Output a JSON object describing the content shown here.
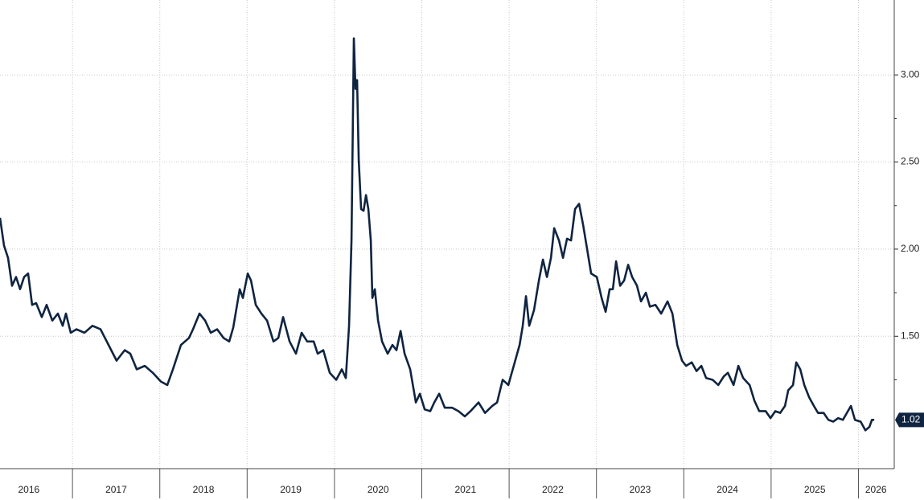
{
  "chart_data": {
    "type": "line",
    "series": [
      {
        "color": "#0f2440",
        "x": [
          2016.17,
          2016.216,
          2016.262,
          2016.308,
          2016.354,
          2016.4,
          2016.446,
          2016.492,
          2016.538,
          2016.584,
          2016.649,
          2016.704,
          2016.769,
          2016.833,
          2016.888,
          2016.925,
          2016.98,
          2017.045,
          2017.137,
          2017.229,
          2017.321,
          2017.413,
          2017.505,
          2017.598,
          2017.662,
          2017.736,
          2017.828,
          2017.92,
          2018.012,
          2018.086,
          2018.15,
          2018.242,
          2018.334,
          2018.38,
          2018.454,
          2018.519,
          2018.583,
          2018.657,
          2018.73,
          2018.795,
          2018.841,
          2018.915,
          2018.951,
          2019.007,
          2019.044,
          2019.099,
          2019.163,
          2019.228,
          2019.301,
          2019.357,
          2019.412,
          2019.486,
          2019.559,
          2019.624,
          2019.688,
          2019.762,
          2019.808,
          2019.872,
          2019.946,
          2020.02,
          2020.084,
          2020.13,
          2020.167,
          2020.195,
          2020.222,
          2020.241,
          2020.259,
          2020.278,
          2020.305,
          2020.333,
          2020.361,
          2020.388,
          2020.416,
          2020.434,
          2020.462,
          2020.499,
          2020.545,
          2020.609,
          2020.664,
          2020.71,
          2020.757,
          2020.803,
          2020.867,
          2020.932,
          2020.978,
          2021.033,
          2021.097,
          2021.143,
          2021.199,
          2021.263,
          2021.346,
          2021.42,
          2021.493,
          2021.558,
          2021.65,
          2021.724,
          2021.807,
          2021.862,
          2021.926,
          2021.991,
          2022.064,
          2022.12,
          2022.156,
          2022.193,
          2022.23,
          2022.285,
          2022.341,
          2022.387,
          2022.433,
          2022.479,
          2022.516,
          2022.571,
          2022.617,
          2022.663,
          2022.709,
          2022.755,
          2022.801,
          2022.847,
          2022.893,
          2022.939,
          2023.004,
          2023.059,
          2023.105,
          2023.151,
          2023.188,
          2023.225,
          2023.271,
          2023.317,
          2023.363,
          2023.409,
          2023.464,
          2023.51,
          2023.566,
          2023.612,
          2023.676,
          2023.741,
          2023.814,
          2023.87,
          2023.925,
          2023.98,
          2024.026,
          2024.091,
          2024.146,
          2024.201,
          2024.256,
          2024.33,
          2024.395,
          2024.459,
          2024.505,
          2024.57,
          2024.625,
          2024.68,
          2024.754,
          2024.809,
          2024.864,
          2024.938,
          2024.993,
          2025.048,
          2025.104,
          2025.159,
          2025.196,
          2025.251,
          2025.288,
          2025.334,
          2025.38,
          2025.435,
          2025.49,
          2025.537,
          2025.601,
          2025.656,
          2025.712,
          2025.767,
          2025.822,
          2025.868,
          2025.914,
          2025.96,
          2026.025,
          2026.08,
          2026.126,
          2026.154,
          2026.181
        ],
        "values": [
          2.18,
          2.02,
          1.95,
          1.79,
          1.84,
          1.77,
          1.84,
          1.86,
          1.68,
          1.69,
          1.61,
          1.68,
          1.59,
          1.63,
          1.56,
          1.63,
          1.52,
          1.54,
          1.52,
          1.56,
          1.54,
          1.45,
          1.36,
          1.42,
          1.4,
          1.31,
          1.33,
          1.29,
          1.24,
          1.22,
          1.31,
          1.45,
          1.49,
          1.54,
          1.63,
          1.59,
          1.52,
          1.54,
          1.49,
          1.47,
          1.55,
          1.77,
          1.72,
          1.86,
          1.82,
          1.68,
          1.63,
          1.59,
          1.47,
          1.49,
          1.61,
          1.47,
          1.4,
          1.52,
          1.47,
          1.47,
          1.4,
          1.42,
          1.29,
          1.25,
          1.31,
          1.26,
          1.56,
          2.05,
          3.21,
          2.92,
          2.97,
          2.51,
          2.23,
          2.22,
          2.31,
          2.23,
          2.05,
          1.72,
          1.77,
          1.59,
          1.47,
          1.4,
          1.45,
          1.42,
          1.53,
          1.4,
          1.31,
          1.12,
          1.17,
          1.08,
          1.07,
          1.12,
          1.17,
          1.09,
          1.09,
          1.07,
          1.04,
          1.07,
          1.12,
          1.06,
          1.1,
          1.12,
          1.25,
          1.22,
          1.35,
          1.45,
          1.56,
          1.73,
          1.56,
          1.65,
          1.82,
          1.94,
          1.84,
          1.95,
          2.12,
          2.05,
          1.95,
          2.06,
          2.05,
          2.23,
          2.26,
          2.14,
          2.0,
          1.86,
          1.84,
          1.72,
          1.64,
          1.77,
          1.77,
          1.93,
          1.79,
          1.82,
          1.91,
          1.84,
          1.79,
          1.7,
          1.75,
          1.67,
          1.68,
          1.63,
          1.7,
          1.63,
          1.45,
          1.36,
          1.33,
          1.35,
          1.3,
          1.33,
          1.26,
          1.25,
          1.22,
          1.27,
          1.29,
          1.22,
          1.33,
          1.26,
          1.22,
          1.13,
          1.07,
          1.07,
          1.03,
          1.07,
          1.06,
          1.1,
          1.19,
          1.22,
          1.35,
          1.31,
          1.22,
          1.15,
          1.1,
          1.06,
          1.06,
          1.02,
          1.01,
          1.03,
          1.02,
          1.06,
          1.1,
          1.02,
          1.01,
          0.96,
          0.98,
          1.02,
          1.02
        ]
      }
    ],
    "xlim": [
      2016.17,
      2026.41
    ],
    "xticks": [
      {
        "value": 2016.5,
        "label": "2016"
      },
      {
        "value": 2017.5,
        "label": "2017"
      },
      {
        "value": 2018.5,
        "label": "2018"
      },
      {
        "value": 2019.5,
        "label": "2019"
      },
      {
        "value": 2020.5,
        "label": "2020"
      },
      {
        "value": 2021.5,
        "label": "2021"
      },
      {
        "value": 2022.5,
        "label": "2022"
      },
      {
        "value": 2023.5,
        "label": "2023"
      },
      {
        "value": 2024.5,
        "label": "2024"
      },
      {
        "value": 2025.5,
        "label": "2025"
      },
      {
        "value": 2026.2,
        "label": "2026"
      }
    ],
    "ylim": [
      0.74,
      3.43
    ],
    "yticks": [
      {
        "value": 1.5,
        "label": "1.50"
      },
      {
        "value": 2,
        "label": "2.00"
      },
      {
        "value": 2.5,
        "label": "2.50"
      },
      {
        "value": 3,
        "label": "3.00"
      }
    ],
    "grid": true
  }
}
